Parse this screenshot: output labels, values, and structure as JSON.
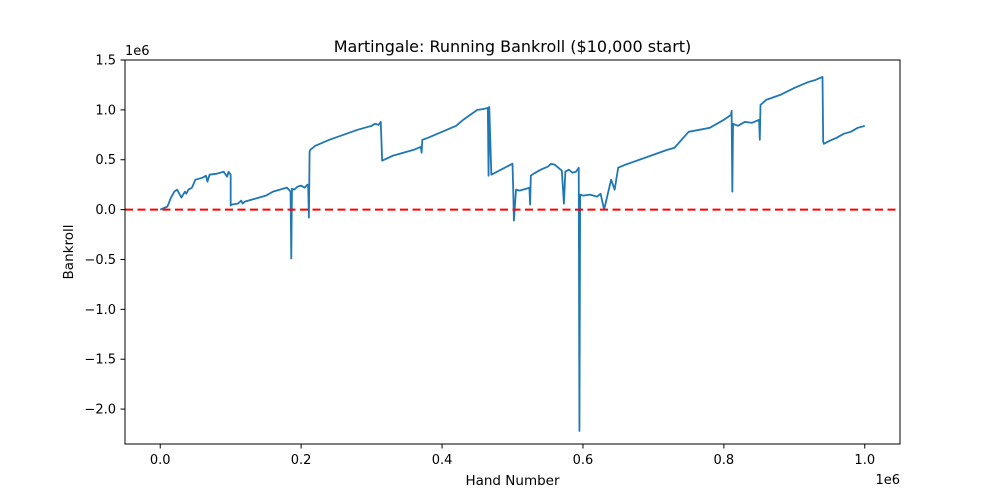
{
  "chart_data": {
    "type": "line",
    "title": "Martingale: Running Bankroll ($10,000 start)",
    "xlabel": "Hand Number",
    "ylabel": "Bankroll",
    "x_offset_label": "1e6",
    "y_offset_label": "1e6",
    "xlim": [
      -0.05,
      1.05
    ],
    "ylim": [
      -2.35,
      1.5
    ],
    "x_ticks": [
      0.0,
      0.2,
      0.4,
      0.6,
      0.8,
      1.0
    ],
    "x_tick_labels": [
      "0.0",
      "0.2",
      "0.4",
      "0.6",
      "0.8",
      "1.0"
    ],
    "y_ticks": [
      1.5,
      1.0,
      0.5,
      0.0,
      -0.5,
      -1.0,
      -1.5,
      -2.0
    ],
    "y_tick_labels": [
      "1.5",
      "1.0",
      "0.5",
      "0.0",
      "−0.5",
      "−1.0",
      "−1.5",
      "−2.0"
    ],
    "grid": false,
    "reference_line": {
      "y": 0.0,
      "style": "dashed",
      "color": "#ff0000"
    },
    "series": [
      {
        "color": "#1f77b4",
        "x": [
          0.0,
          0.01,
          0.012,
          0.014,
          0.016,
          0.02,
          0.024,
          0.03,
          0.035,
          0.037,
          0.04,
          0.045,
          0.05,
          0.06,
          0.065,
          0.067,
          0.07,
          0.08,
          0.09,
          0.095,
          0.097,
          0.1,
          0.1,
          0.101,
          0.11,
          0.115,
          0.117,
          0.12,
          0.13,
          0.14,
          0.15,
          0.16,
          0.17,
          0.18,
          0.185,
          0.186,
          0.187,
          0.19,
          0.195,
          0.2,
          0.205,
          0.209,
          0.21,
          0.211,
          0.212,
          0.213,
          0.22,
          0.24,
          0.26,
          0.28,
          0.29,
          0.3,
          0.305,
          0.31,
          0.313,
          0.315,
          0.33,
          0.34,
          0.35,
          0.36,
          0.37,
          0.371,
          0.372,
          0.38,
          0.4,
          0.42,
          0.43,
          0.44,
          0.45,
          0.46,
          0.465,
          0.466,
          0.467,
          0.47,
          0.5,
          0.501,
          0.502,
          0.505,
          0.51,
          0.52,
          0.524,
          0.525,
          0.526,
          0.53,
          0.54,
          0.55,
          0.555,
          0.56,
          0.57,
          0.573,
          0.575,
          0.58,
          0.585,
          0.59,
          0.594,
          0.595,
          0.596,
          0.6,
          0.61,
          0.62,
          0.625,
          0.63,
          0.64,
          0.645,
          0.65,
          0.66,
          0.68,
          0.7,
          0.72,
          0.73,
          0.75,
          0.78,
          0.8,
          0.81,
          0.811,
          0.812,
          0.813,
          0.82,
          0.83,
          0.84,
          0.85,
          0.851,
          0.852,
          0.86,
          0.88,
          0.9,
          0.92,
          0.93,
          0.94,
          0.941,
          0.942,
          0.95,
          0.96,
          0.97,
          0.98,
          0.99,
          1.0
        ],
        "y": [
          0.0,
          0.03,
          0.06,
          0.1,
          0.13,
          0.18,
          0.2,
          0.12,
          0.18,
          0.16,
          0.2,
          0.22,
          0.3,
          0.32,
          0.34,
          0.28,
          0.35,
          0.36,
          0.38,
          0.33,
          0.38,
          0.35,
          0.04,
          0.05,
          0.06,
          0.09,
          0.06,
          0.08,
          0.1,
          0.12,
          0.14,
          0.18,
          0.2,
          0.22,
          0.18,
          -0.49,
          0.21,
          0.2,
          0.23,
          0.24,
          0.22,
          0.25,
          0.24,
          -0.08,
          0.58,
          0.6,
          0.64,
          0.7,
          0.75,
          0.8,
          0.82,
          0.84,
          0.86,
          0.85,
          0.88,
          0.49,
          0.54,
          0.56,
          0.58,
          0.6,
          0.63,
          0.57,
          0.7,
          0.72,
          0.78,
          0.84,
          0.9,
          0.95,
          1.0,
          1.01,
          1.02,
          0.34,
          1.03,
          0.35,
          0.46,
          0.21,
          -0.11,
          0.2,
          0.19,
          0.21,
          0.22,
          0.05,
          0.34,
          0.36,
          0.4,
          0.43,
          0.46,
          0.45,
          0.39,
          0.06,
          0.38,
          0.4,
          0.37,
          0.38,
          0.42,
          -2.22,
          0.15,
          0.14,
          0.15,
          0.13,
          0.16,
          0.0,
          0.3,
          0.2,
          0.42,
          0.45,
          0.5,
          0.55,
          0.6,
          0.62,
          0.78,
          0.82,
          0.9,
          0.95,
          0.99,
          0.18,
          0.86,
          0.84,
          0.88,
          0.87,
          0.9,
          0.7,
          1.05,
          1.1,
          1.15,
          1.22,
          1.28,
          1.3,
          1.33,
          0.68,
          0.66,
          0.69,
          0.72,
          0.76,
          0.78,
          0.82,
          0.84
        ]
      }
    ]
  }
}
